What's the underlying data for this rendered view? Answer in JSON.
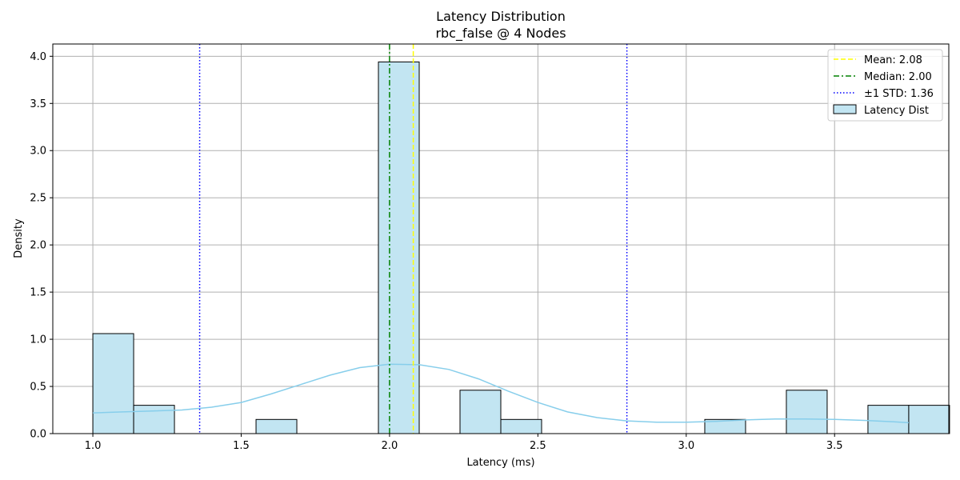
{
  "chart_data": {
    "type": "bar",
    "title": "Latency Distribution",
    "subtitle": "rbc_false @ 4 Nodes",
    "xlabel": "Latency (ms)",
    "ylabel": "Density",
    "xlim": [
      0.865,
      3.885
    ],
    "ylim": [
      0,
      4.13
    ],
    "xticks": [
      "1.0",
      "1.5",
      "2.0",
      "2.5",
      "3.0",
      "3.5"
    ],
    "yticks": [
      "0.0",
      "0.5",
      "1.0",
      "1.5",
      "2.0",
      "2.5",
      "3.0",
      "3.5",
      "4.0"
    ],
    "grid": true,
    "legend_position": "top-right",
    "histogram": {
      "name": "Latency Dist",
      "bin_start": 1.0,
      "bin_width": 0.1375,
      "values": [
        1.06,
        0.3,
        0,
        0,
        0.15,
        0,
        0,
        3.94,
        0,
        0.46,
        0.15,
        0,
        0,
        0,
        0,
        0.15,
        0,
        0.46,
        0,
        0.3,
        0.3
      ],
      "fill_color": "#c2e5f2",
      "edge_color": "#000000"
    },
    "kde": {
      "color": "#87ceeb",
      "x": [
        1.0,
        1.1,
        1.2,
        1.3,
        1.4,
        1.5,
        1.6,
        1.7,
        1.8,
        1.9,
        2.0,
        2.1,
        2.2,
        2.3,
        2.4,
        2.5,
        2.6,
        2.7,
        2.8,
        2.9,
        3.0,
        3.1,
        3.2,
        3.3,
        3.4,
        3.5,
        3.6,
        3.7,
        3.75
      ],
      "y": [
        0.22,
        0.23,
        0.24,
        0.25,
        0.28,
        0.33,
        0.42,
        0.52,
        0.62,
        0.7,
        0.735,
        0.73,
        0.68,
        0.58,
        0.45,
        0.33,
        0.23,
        0.17,
        0.135,
        0.12,
        0.12,
        0.13,
        0.145,
        0.155,
        0.155,
        0.15,
        0.14,
        0.125,
        0.115
      ]
    },
    "lines": [
      {
        "name": "Mean: 2.08",
        "x": 2.08,
        "color": "#ffff00",
        "dash": "dashed"
      },
      {
        "name": "Median: 2.00",
        "x": 2.0,
        "color": "#008000",
        "dash": "dashdot"
      },
      {
        "name": "±1 STD: 1.36",
        "x": 1.36,
        "color": "#0000ff",
        "dash": "dotted"
      },
      {
        "name": "",
        "x": 2.8,
        "color": "#0000ff",
        "dash": "dotted"
      }
    ],
    "legend": [
      "Mean: 2.08",
      "Median: 2.00",
      "±1 STD: 1.36",
      "Latency Dist"
    ]
  }
}
